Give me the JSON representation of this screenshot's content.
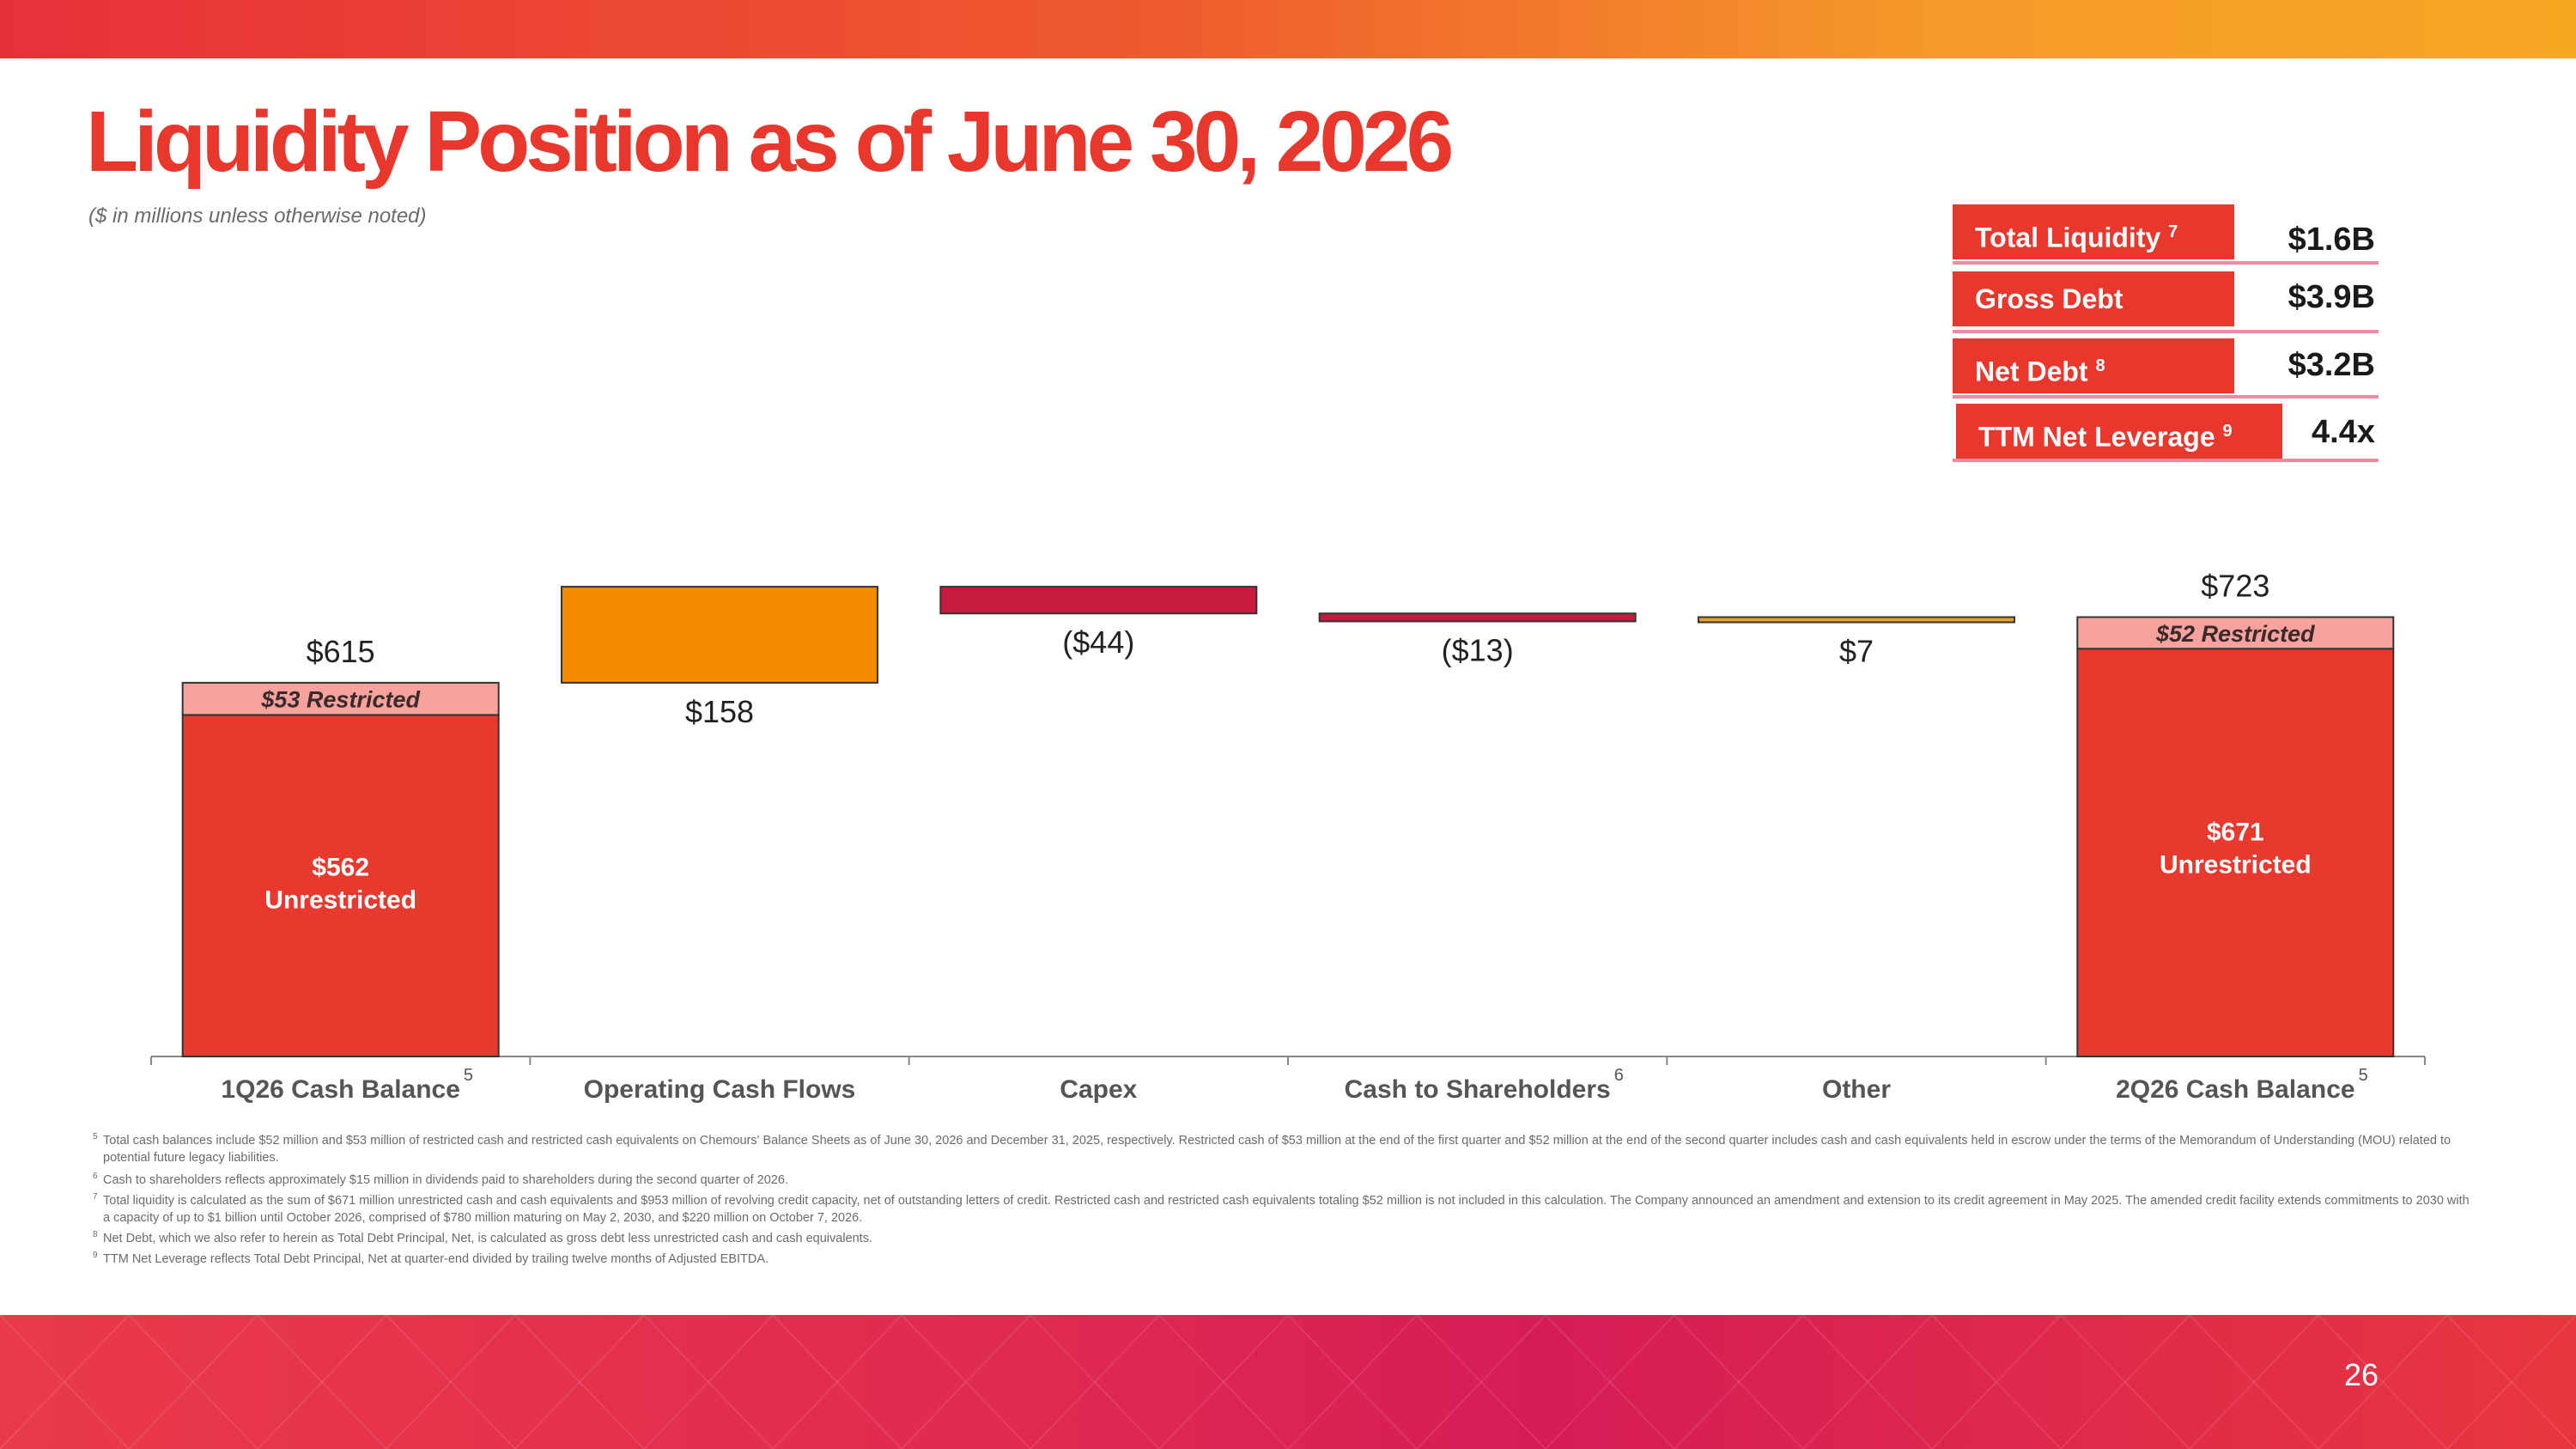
{
  "slide": {
    "title": "Liquidity Position as of June 30, 2026",
    "subtitle": "($ in millions unless otherwise noted)",
    "page_number": "26"
  },
  "kpis": [
    {
      "label": "Total Liquidity",
      "sup": "7",
      "value": "$1.6B"
    },
    {
      "label": "Gross Debt",
      "sup": "",
      "value": "$3.9B"
    },
    {
      "label": "Net Debt",
      "sup": "8",
      "value": "$3.2B"
    },
    {
      "label": "TTM Net Leverage",
      "sup": "9",
      "value": "4.4x"
    }
  ],
  "chart_data": {
    "type": "bar",
    "subtype": "waterfall",
    "categories": [
      "1Q26 Cash Balance",
      "Operating Cash Flows",
      "Capex",
      "Cash to Shareholders",
      "Other",
      "2Q26 Cash Balance"
    ],
    "category_superscripts": [
      "5",
      "",
      "",
      "6",
      "",
      "5"
    ],
    "total_labels": [
      "$615",
      "$158",
      "($44)",
      "($13)",
      "$7",
      "$723"
    ],
    "bars": [
      {
        "kind": "total",
        "unrestricted": 562,
        "restricted": 53,
        "unrestricted_label": "$562",
        "unrestricted_sublabel": "Unrestricted",
        "restricted_label": "$53 Restricted"
      },
      {
        "kind": "delta",
        "value": 158,
        "color": "#f28a00"
      },
      {
        "kind": "delta",
        "value": -44,
        "color": "#c8193f"
      },
      {
        "kind": "delta",
        "value": -13,
        "color": "#c8193f"
      },
      {
        "kind": "delta",
        "value": 7,
        "color": "#e8a323"
      },
      {
        "kind": "total",
        "unrestricted": 671,
        "restricted": 52,
        "unrestricted_label": "$671",
        "unrestricted_sublabel": "Unrestricted",
        "restricted_label": "$52 Restricted"
      }
    ],
    "colors": {
      "unrestricted": "#e8392f",
      "restricted": "#f7a29d",
      "axis": "#888888"
    },
    "ylim": [
      0,
      800
    ],
    "grid": false,
    "legend": "none"
  },
  "footnotes": [
    {
      "num": "5",
      "text": "Total cash balances include $52 million and $53 million of restricted cash and restricted cash equivalents on Chemours' Balance Sheets as of June 30, 2026 and December 31, 2025, respectively. Restricted cash of $53 million at the end of the first quarter and $52 million at the end of the second quarter includes cash and cash equivalents held in escrow under the terms of the Memorandum of Understanding (MOU) related to potential future legacy liabilities."
    },
    {
      "num": "6",
      "text": "Cash to shareholders reflects approximately $15 million in dividends paid to shareholders during the second quarter of 2026."
    },
    {
      "num": "7",
      "text": "Total liquidity is calculated as the sum of $671 million unrestricted cash and cash equivalents and $953 million of revolving credit capacity, net of outstanding letters of credit. Restricted cash and restricted cash equivalents totaling $52 million is not included in this  calculation. The Company announced an amendment and extension to its credit agreement in May 2025. The amended credit facility extends commitments to 2030 with a capacity of up to $1 billion until October 2026, comprised of $780 million maturing on May 2, 2030, and $220 million on October 7, 2026."
    },
    {
      "num": "8",
      "text": "Net Debt, which we also refer to herein as Total Debt Principal, Net, is calculated as gross debt less unrestricted cash and cash equivalents."
    },
    {
      "num": "9",
      "text": "TTM Net Leverage reflects Total Debt Principal, Net at quarter-end divided by trailing twelve months of Adjusted EBITDA."
    }
  ]
}
